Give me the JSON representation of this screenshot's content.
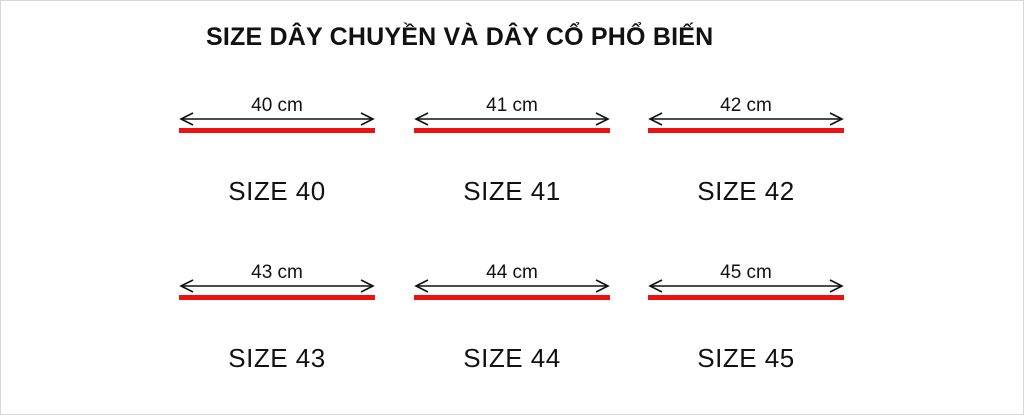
{
  "title": "SIZE DÂY CHUYỀN VÀ DÂY CỔ PHỔ BIẾN",
  "colors": {
    "bar": "#ee1111",
    "arrow": "#111111",
    "text": "#111111"
  },
  "sizes": [
    {
      "length": "40 cm",
      "label": "SIZE 40"
    },
    {
      "length": "41 cm",
      "label": "SIZE 41"
    },
    {
      "length": "42 cm",
      "label": "SIZE 42"
    },
    {
      "length": "43 cm",
      "label": "SIZE 43"
    },
    {
      "length": "44 cm",
      "label": "SIZE 44"
    },
    {
      "length": "45 cm",
      "label": "SIZE 45"
    }
  ]
}
